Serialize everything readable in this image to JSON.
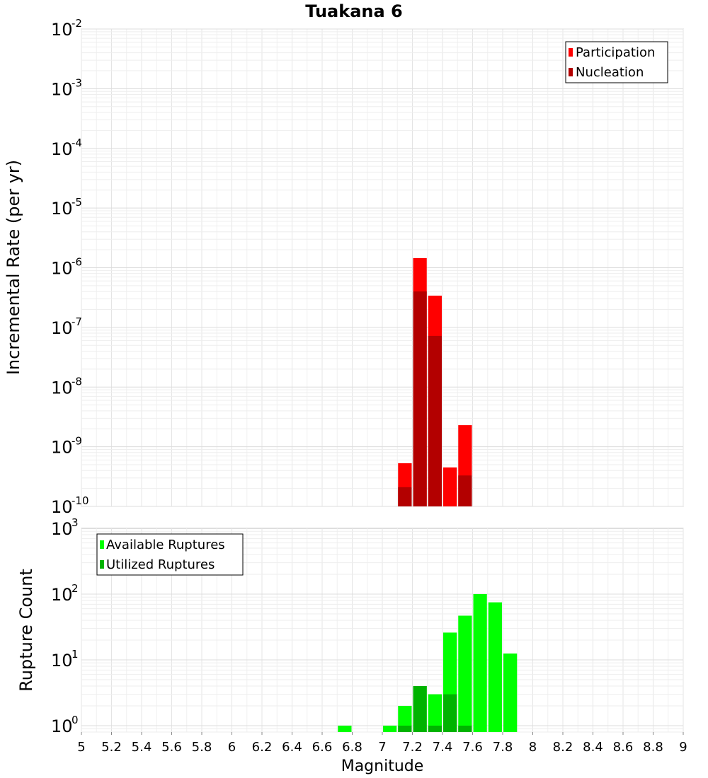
{
  "chart_data": [
    {
      "type": "bar",
      "title": "Tuakana 6",
      "ylabel": "Incremental Rate (per yr)",
      "xlabel": "",
      "yscale": "log",
      "ylim_exponents": [
        -10,
        -2
      ],
      "ytick_base": "10",
      "ytick_exponents": [
        -2,
        -3,
        -4,
        -5,
        -6,
        -7,
        -8,
        -9,
        -10
      ],
      "xlim": [
        5,
        9
      ],
      "bin_width": 0.1,
      "legend_position": "top-right",
      "grid": true,
      "series": [
        {
          "name": "Participation",
          "color": "#ff0000",
          "x": [
            7.15,
            7.25,
            7.35,
            7.45,
            7.55
          ],
          "values": [
            5.3e-10,
            1.45e-06,
            3.4e-07,
            4.5e-10,
            2.3e-09
          ]
        },
        {
          "name": "Nucleation",
          "color": "#b30000",
          "x": [
            7.15,
            7.25,
            7.35,
            7.45,
            7.55
          ],
          "values": [
            2.1e-10,
            4e-07,
            7.2e-08,
            0,
            3.3e-10
          ]
        }
      ]
    },
    {
      "type": "bar",
      "title": "",
      "ylabel": "Rupture Count",
      "xlabel": "Magnitude",
      "yscale": "log",
      "ylim": [
        0.8,
        1000
      ],
      "ytick_base": "10",
      "ytick_exponents": [
        3,
        2,
        1,
        0
      ],
      "xlim": [
        5,
        9
      ],
      "xticks": [
        "5",
        "5.2",
        "5.4",
        "5.6",
        "5.8",
        "6",
        "6.2",
        "6.4",
        "6.6",
        "6.8",
        "7",
        "7.2",
        "7.4",
        "7.6",
        "7.8",
        "8",
        "8.2",
        "8.4",
        "8.6",
        "8.8",
        "9"
      ],
      "bin_width": 0.1,
      "legend_position": "top-left",
      "grid": true,
      "series": [
        {
          "name": "Available Ruptures",
          "color": "#00ff00",
          "x": [
            6.75,
            7.05,
            7.15,
            7.25,
            7.35,
            7.45,
            7.55,
            7.65,
            7.75,
            7.85
          ],
          "values": [
            1,
            1,
            2,
            4,
            3,
            26,
            47,
            100,
            75,
            12.5
          ]
        },
        {
          "name": "Utilized Ruptures",
          "color": "#00b300",
          "x": [
            7.15,
            7.25,
            7.35,
            7.45,
            7.55
          ],
          "values": [
            1,
            4,
            1,
            3,
            1
          ]
        }
      ]
    }
  ]
}
